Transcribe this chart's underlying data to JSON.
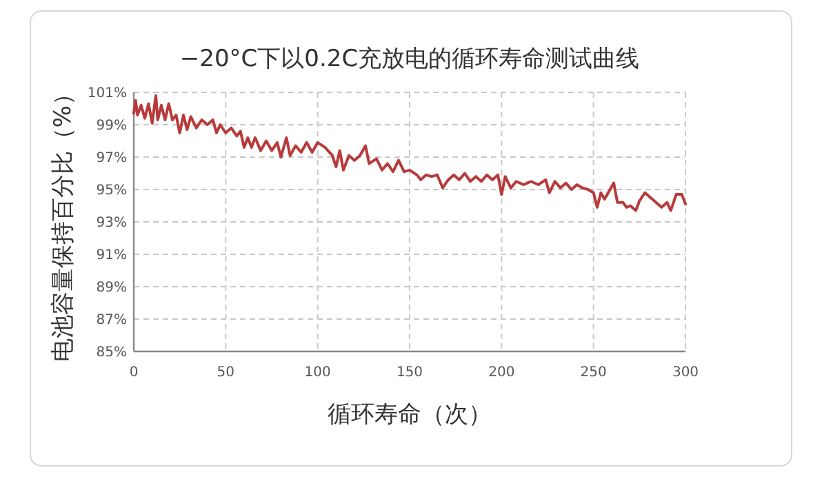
{
  "chart_data": {
    "type": "line",
    "title": "−20°C下以0.2C充放电的循环寿命测试曲线",
    "xlabel": "循环寿命（次）",
    "ylabel": "电池容量保持百分比（%）",
    "xlim": [
      0,
      300
    ],
    "xticks": [
      0,
      50,
      100,
      150,
      200,
      250,
      300
    ],
    "ylim": [
      85,
      101
    ],
    "yticks": [
      {
        "value": 85,
        "label": "85%"
      },
      {
        "value": 87,
        "label": "87%"
      },
      {
        "value": 89,
        "label": "89%"
      },
      {
        "value": 91,
        "label": "91%"
      },
      {
        "value": 93,
        "label": "93%"
      },
      {
        "value": 95,
        "label": "95%"
      },
      {
        "value": 97,
        "label": "97%"
      },
      {
        "value": 99,
        "label": "99%"
      },
      {
        "value": 101,
        "label": "101%"
      }
    ],
    "grid": true,
    "marker": "none",
    "line_style": "solid",
    "series": [
      {
        "color": "#b83a3a",
        "x": [
          0,
          1,
          2,
          4,
          6,
          8,
          10,
          12,
          13,
          15,
          17,
          19,
          21,
          23,
          25,
          27,
          29,
          31,
          34,
          37,
          40,
          43,
          45,
          47,
          50,
          53,
          56,
          58,
          60,
          62,
          64,
          66,
          69,
          72,
          75,
          78,
          80,
          83,
          85,
          88,
          91,
          94,
          97,
          100,
          104,
          108,
          110,
          112,
          114,
          117,
          120,
          123,
          126,
          128,
          132,
          135,
          138,
          141,
          144,
          147,
          150,
          154,
          156,
          159,
          162,
          165,
          168,
          171,
          174,
          177,
          180,
          183,
          186,
          189,
          192,
          195,
          198,
          200,
          202,
          205,
          208,
          212,
          216,
          220,
          224,
          226,
          229,
          232,
          235,
          238,
          241,
          244,
          247,
          250,
          252,
          254,
          256,
          258,
          261,
          263,
          266,
          268,
          270,
          273,
          275,
          278,
          281,
          284,
          287,
          290,
          292,
          295,
          298,
          300
        ],
        "values": [
          99.7,
          100.5,
          99.6,
          100.2,
          99.4,
          100.3,
          99.1,
          100.8,
          99.3,
          100.2,
          99.3,
          100.3,
          99.3,
          99.6,
          98.5,
          99.6,
          98.7,
          99.5,
          98.8,
          99.3,
          99.0,
          99.3,
          98.5,
          99.0,
          98.5,
          98.8,
          98.3,
          98.6,
          97.6,
          98.2,
          97.6,
          98.2,
          97.4,
          98.0,
          97.4,
          97.9,
          97.0,
          98.2,
          97.1,
          97.7,
          97.3,
          97.9,
          97.3,
          97.9,
          97.6,
          97.1,
          96.4,
          97.4,
          96.2,
          97.1,
          96.8,
          97.1,
          97.7,
          96.6,
          96.9,
          96.2,
          96.6,
          96.1,
          96.8,
          96.1,
          96.2,
          95.9,
          95.6,
          95.9,
          95.8,
          95.9,
          95.1,
          95.6,
          95.9,
          95.6,
          96.0,
          95.5,
          95.8,
          95.5,
          95.9,
          95.6,
          95.9,
          94.7,
          95.8,
          95.1,
          95.5,
          95.3,
          95.5,
          95.3,
          95.6,
          94.8,
          95.5,
          95.1,
          95.4,
          95.0,
          95.3,
          95.1,
          95.0,
          94.8,
          93.9,
          94.8,
          94.4,
          94.8,
          95.4,
          94.2,
          94.2,
          93.9,
          94.0,
          93.7,
          94.3,
          94.8,
          94.5,
          94.2,
          93.9,
          94.2,
          93.7,
          94.7,
          94.7,
          94.1
        ]
      }
    ]
  }
}
